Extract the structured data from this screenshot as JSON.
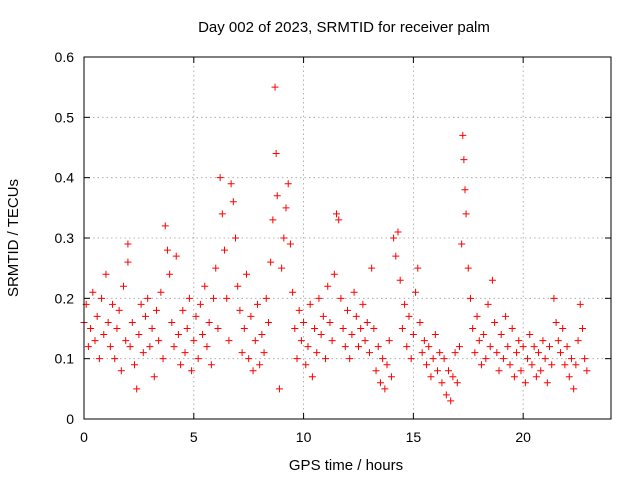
{
  "chart_data": {
    "type": "scatter",
    "title": "Day 002 of 2023, SRMTID for receiver palm",
    "xlabel": "GPS time / hours",
    "ylabel": "SRMTID / TECUs",
    "xlim": [
      0,
      24
    ],
    "ylim": [
      0,
      0.6
    ],
    "x_ticks": [
      0,
      5,
      10,
      15,
      20
    ],
    "x_tick_labels": [
      "0",
      "5",
      "10",
      "15",
      "20"
    ],
    "y_ticks": [
      0,
      0.1,
      0.2,
      0.3,
      0.4,
      0.5,
      0.6
    ],
    "y_tick_labels": [
      "0",
      "0.1",
      "0.2",
      "0.3",
      "0.4",
      "0.5",
      "0.6"
    ],
    "grid": true,
    "marker": "+",
    "color": "#ff0000",
    "series": [
      {
        "name": "SRMTID",
        "points": [
          [
            0.0,
            0.16
          ],
          [
            0.1,
            0.19
          ],
          [
            0.2,
            0.12
          ],
          [
            0.3,
            0.15
          ],
          [
            0.4,
            0.21
          ],
          [
            0.5,
            0.13
          ],
          [
            0.6,
            0.17
          ],
          [
            0.7,
            0.1
          ],
          [
            0.8,
            0.2
          ],
          [
            0.9,
            0.14
          ],
          [
            1.0,
            0.24
          ],
          [
            1.1,
            0.16
          ],
          [
            1.2,
            0.12
          ],
          [
            1.3,
            0.19
          ],
          [
            1.4,
            0.1
          ],
          [
            1.5,
            0.15
          ],
          [
            1.6,
            0.18
          ],
          [
            1.7,
            0.08
          ],
          [
            1.8,
            0.22
          ],
          [
            1.9,
            0.13
          ],
          [
            2.0,
            0.29
          ],
          [
            2.0,
            0.26
          ],
          [
            2.1,
            0.12
          ],
          [
            2.2,
            0.16
          ],
          [
            2.3,
            0.09
          ],
          [
            2.4,
            0.05
          ],
          [
            2.5,
            0.14
          ],
          [
            2.6,
            0.19
          ],
          [
            2.7,
            0.11
          ],
          [
            2.8,
            0.17
          ],
          [
            2.9,
            0.2
          ],
          [
            3.0,
            0.12
          ],
          [
            3.1,
            0.15
          ],
          [
            3.2,
            0.07
          ],
          [
            3.3,
            0.18
          ],
          [
            3.4,
            0.13
          ],
          [
            3.5,
            0.21
          ],
          [
            3.6,
            0.1
          ],
          [
            3.7,
            0.32
          ],
          [
            3.8,
            0.28
          ],
          [
            3.9,
            0.24
          ],
          [
            4.0,
            0.16
          ],
          [
            4.1,
            0.12
          ],
          [
            4.2,
            0.27
          ],
          [
            4.3,
            0.14
          ],
          [
            4.4,
            0.09
          ],
          [
            4.5,
            0.18
          ],
          [
            4.6,
            0.11
          ],
          [
            4.7,
            0.15
          ],
          [
            4.8,
            0.2
          ],
          [
            4.9,
            0.08
          ],
          [
            5.0,
            0.13
          ],
          [
            5.1,
            0.17
          ],
          [
            5.2,
            0.1
          ],
          [
            5.3,
            0.19
          ],
          [
            5.4,
            0.14
          ],
          [
            5.5,
            0.22
          ],
          [
            5.6,
            0.12
          ],
          [
            5.7,
            0.16
          ],
          [
            5.8,
            0.09
          ],
          [
            5.9,
            0.2
          ],
          [
            6.0,
            0.25
          ],
          [
            6.1,
            0.15
          ],
          [
            6.2,
            0.4
          ],
          [
            6.3,
            0.34
          ],
          [
            6.4,
            0.28
          ],
          [
            6.5,
            0.2
          ],
          [
            6.6,
            0.13
          ],
          [
            6.7,
            0.39
          ],
          [
            6.8,
            0.36
          ],
          [
            6.9,
            0.3
          ],
          [
            7.0,
            0.22
          ],
          [
            7.1,
            0.18
          ],
          [
            7.2,
            0.11
          ],
          [
            7.3,
            0.15
          ],
          [
            7.4,
            0.24
          ],
          [
            7.5,
            0.1
          ],
          [
            7.6,
            0.17
          ],
          [
            7.7,
            0.08
          ],
          [
            7.8,
            0.13
          ],
          [
            7.9,
            0.19
          ],
          [
            8.0,
            0.09
          ],
          [
            8.1,
            0.14
          ],
          [
            8.2,
            0.11
          ],
          [
            8.3,
            0.2
          ],
          [
            8.4,
            0.16
          ],
          [
            8.5,
            0.26
          ],
          [
            8.6,
            0.33
          ],
          [
            8.7,
            0.55
          ],
          [
            8.75,
            0.44
          ],
          [
            8.8,
            0.37
          ],
          [
            8.9,
            0.05
          ],
          [
            9.0,
            0.25
          ],
          [
            9.1,
            0.3
          ],
          [
            9.2,
            0.35
          ],
          [
            9.3,
            0.39
          ],
          [
            9.4,
            0.29
          ],
          [
            9.5,
            0.21
          ],
          [
            9.6,
            0.15
          ],
          [
            9.7,
            0.1
          ],
          [
            9.8,
            0.18
          ],
          [
            9.9,
            0.13
          ],
          [
            10.0,
            0.16
          ],
          [
            10.1,
            0.09
          ],
          [
            10.2,
            0.12
          ],
          [
            10.3,
            0.19
          ],
          [
            10.4,
            0.07
          ],
          [
            10.5,
            0.15
          ],
          [
            10.6,
            0.11
          ],
          [
            10.7,
            0.2
          ],
          [
            10.8,
            0.14
          ],
          [
            10.9,
            0.17
          ],
          [
            11.0,
            0.1
          ],
          [
            11.1,
            0.22
          ],
          [
            11.2,
            0.16
          ],
          [
            11.3,
            0.13
          ],
          [
            11.4,
            0.24
          ],
          [
            11.5,
            0.34
          ],
          [
            11.6,
            0.33
          ],
          [
            11.7,
            0.2
          ],
          [
            11.8,
            0.15
          ],
          [
            11.9,
            0.12
          ],
          [
            12.0,
            0.18
          ],
          [
            12.1,
            0.1
          ],
          [
            12.2,
            0.14
          ],
          [
            12.3,
            0.21
          ],
          [
            12.4,
            0.17
          ],
          [
            12.5,
            0.12
          ],
          [
            12.6,
            0.15
          ],
          [
            12.7,
            0.19
          ],
          [
            12.8,
            0.13
          ],
          [
            12.9,
            0.16
          ],
          [
            13.0,
            0.11
          ],
          [
            13.1,
            0.25
          ],
          [
            13.2,
            0.15
          ],
          [
            13.3,
            0.08
          ],
          [
            13.4,
            0.12
          ],
          [
            13.5,
            0.06
          ],
          [
            13.6,
            0.1
          ],
          [
            13.7,
            0.05
          ],
          [
            13.8,
            0.09
          ],
          [
            13.9,
            0.13
          ],
          [
            14.0,
            0.07
          ],
          [
            14.1,
            0.3
          ],
          [
            14.2,
            0.27
          ],
          [
            14.3,
            0.31
          ],
          [
            14.4,
            0.23
          ],
          [
            14.5,
            0.15
          ],
          [
            14.6,
            0.19
          ],
          [
            14.7,
            0.12
          ],
          [
            14.8,
            0.17
          ],
          [
            14.9,
            0.1
          ],
          [
            15.0,
            0.14
          ],
          [
            15.1,
            0.21
          ],
          [
            15.2,
            0.25
          ],
          [
            15.3,
            0.16
          ],
          [
            15.4,
            0.11
          ],
          [
            15.5,
            0.13
          ],
          [
            15.6,
            0.09
          ],
          [
            15.7,
            0.12
          ],
          [
            15.8,
            0.07
          ],
          [
            15.9,
            0.1
          ],
          [
            16.0,
            0.14
          ],
          [
            16.1,
            0.08
          ],
          [
            16.2,
            0.11
          ],
          [
            16.3,
            0.06
          ],
          [
            16.4,
            0.1
          ],
          [
            16.5,
            0.04
          ],
          [
            16.6,
            0.08
          ],
          [
            16.7,
            0.03
          ],
          [
            16.8,
            0.07
          ],
          [
            16.9,
            0.11
          ],
          [
            17.0,
            0.06
          ],
          [
            17.1,
            0.12
          ],
          [
            17.2,
            0.29
          ],
          [
            17.25,
            0.47
          ],
          [
            17.3,
            0.43
          ],
          [
            17.35,
            0.38
          ],
          [
            17.4,
            0.34
          ],
          [
            17.5,
            0.25
          ],
          [
            17.6,
            0.2
          ],
          [
            17.7,
            0.15
          ],
          [
            17.8,
            0.11
          ],
          [
            17.9,
            0.17
          ],
          [
            18.0,
            0.13
          ],
          [
            18.1,
            0.09
          ],
          [
            18.2,
            0.14
          ],
          [
            18.3,
            0.1
          ],
          [
            18.4,
            0.19
          ],
          [
            18.5,
            0.12
          ],
          [
            18.6,
            0.23
          ],
          [
            18.7,
            0.16
          ],
          [
            18.8,
            0.11
          ],
          [
            18.9,
            0.08
          ],
          [
            19.0,
            0.14
          ],
          [
            19.1,
            0.1
          ],
          [
            19.2,
            0.17
          ],
          [
            19.3,
            0.12
          ],
          [
            19.4,
            0.09
          ],
          [
            19.5,
            0.15
          ],
          [
            19.6,
            0.07
          ],
          [
            19.7,
            0.11
          ],
          [
            19.8,
            0.13
          ],
          [
            19.9,
            0.08
          ],
          [
            20.0,
            0.12
          ],
          [
            20.1,
            0.06
          ],
          [
            20.2,
            0.1
          ],
          [
            20.3,
            0.14
          ],
          [
            20.4,
            0.09
          ],
          [
            20.5,
            0.12
          ],
          [
            20.6,
            0.07
          ],
          [
            20.7,
            0.11
          ],
          [
            20.8,
            0.08
          ],
          [
            20.9,
            0.13
          ],
          [
            21.0,
            0.1
          ],
          [
            21.1,
            0.06
          ],
          [
            21.2,
            0.12
          ],
          [
            21.3,
            0.09
          ],
          [
            21.4,
            0.2
          ],
          [
            21.5,
            0.16
          ],
          [
            21.6,
            0.13
          ],
          [
            21.7,
            0.11
          ],
          [
            21.8,
            0.15
          ],
          [
            21.9,
            0.09
          ],
          [
            22.0,
            0.12
          ],
          [
            22.1,
            0.07
          ],
          [
            22.2,
            0.1
          ],
          [
            22.3,
            0.05
          ],
          [
            22.4,
            0.09
          ],
          [
            22.5,
            0.13
          ],
          [
            22.6,
            0.19
          ],
          [
            22.7,
            0.15
          ],
          [
            22.8,
            0.1
          ],
          [
            22.9,
            0.08
          ]
        ]
      }
    ]
  }
}
